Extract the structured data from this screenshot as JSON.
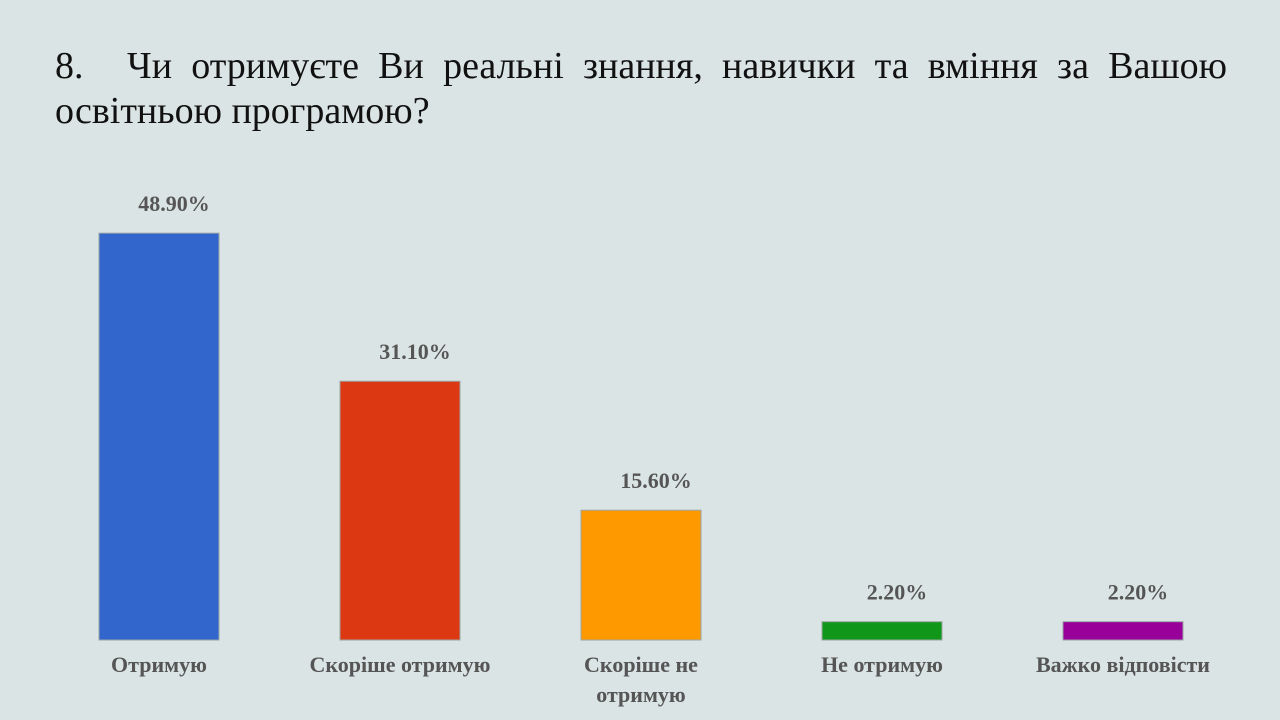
{
  "question": {
    "number": "8.",
    "text": "Чи отримуєте Ви реальні знання, навички та вміння за Вашою освітньою програмою?"
  },
  "chart_data": {
    "type": "bar",
    "title": "",
    "xlabel": "",
    "ylabel": "",
    "ylim": [
      0,
      50
    ],
    "grid": false,
    "legend": "none",
    "categories": [
      [
        "Отримую"
      ],
      [
        "Скоріше отримую"
      ],
      [
        "Скоріше не",
        "отримую"
      ],
      [
        "Не отримую"
      ],
      [
        "Важко відповісти"
      ]
    ],
    "values": [
      48.9,
      31.1,
      15.6,
      2.2,
      2.2
    ],
    "value_labels": [
      "48.90%",
      "31.10%",
      "15.60%",
      "2.20%",
      "2.20%"
    ],
    "colors": [
      "#3366cc",
      "#dc3912",
      "#ff9900",
      "#109618",
      "#990099"
    ]
  }
}
